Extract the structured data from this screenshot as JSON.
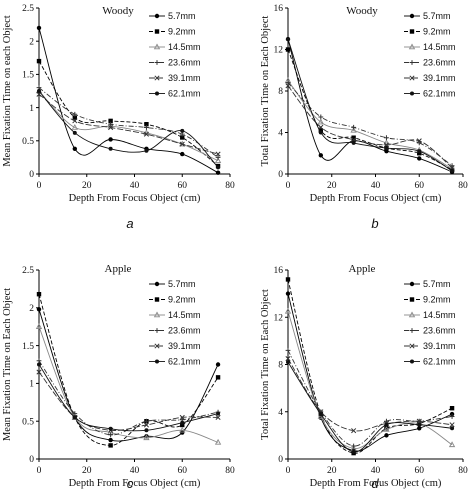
{
  "chart_data": [
    {
      "type": "line",
      "panel_label": "a",
      "title": "Woody",
      "xlabel": "Depth From Focus Object (cm)",
      "ylabel": "Mean Fixation Time on each Object",
      "xlim": [
        0,
        80
      ],
      "ylim": [
        0,
        2.5
      ],
      "xticks": [
        0,
        20,
        40,
        60,
        80
      ],
      "yticks": [
        0,
        0.5,
        1,
        1.5,
        2,
        2.5
      ],
      "ytick_labels": [
        "0",
        "0.5",
        "1",
        "1.5",
        "2",
        "2.5"
      ],
      "x": [
        0,
        15,
        30,
        45,
        60,
        75
      ],
      "series": [
        {
          "name": "5.7mm",
          "values": [
            2.2,
            0.38,
            0.52,
            0.38,
            0.3,
            0.02
          ]
        },
        {
          "name": "9.2mm",
          "values": [
            1.7,
            0.85,
            0.8,
            0.75,
            0.55,
            0.12
          ]
        },
        {
          "name": "14.5mm",
          "values": [
            1.25,
            0.7,
            0.72,
            0.62,
            0.45,
            0.2
          ]
        },
        {
          "name": "23.6mm",
          "values": [
            1.3,
            0.9,
            0.75,
            0.7,
            0.6,
            0.25
          ]
        },
        {
          "name": "39.1mm",
          "values": [
            1.2,
            0.8,
            0.7,
            0.6,
            0.45,
            0.3
          ]
        },
        {
          "name": "62.1mm",
          "values": [
            1.25,
            0.62,
            0.38,
            0.35,
            0.65,
            0.1
          ]
        }
      ]
    },
    {
      "type": "line",
      "panel_label": "b",
      "title": "Woody",
      "xlabel": "Depth From Focus Object (cm)",
      "ylabel": "Total Fixation Time on Each Object",
      "xlim": [
        0,
        80
      ],
      "ylim": [
        0,
        16
      ],
      "xticks": [
        0,
        20,
        40,
        60,
        80
      ],
      "yticks": [
        0,
        4,
        8,
        12,
        16
      ],
      "ytick_labels": [
        "0",
        "4",
        "8",
        "12",
        "16"
      ],
      "x": [
        0,
        15,
        30,
        45,
        60,
        75
      ],
      "series": [
        {
          "name": "5.7mm",
          "values": [
            13,
            1.8,
            3.2,
            2.2,
            1.5,
            0.2
          ]
        },
        {
          "name": "9.2mm",
          "values": [
            12,
            4.2,
            3.5,
            2.5,
            2.0,
            0.4
          ]
        },
        {
          "name": "14.5mm",
          "values": [
            9.0,
            5.0,
            4.2,
            3.0,
            2.3,
            0.5
          ]
        },
        {
          "name": "23.6mm",
          "values": [
            8.8,
            5.5,
            4.5,
            3.5,
            3.0,
            0.8
          ]
        },
        {
          "name": "39.1mm",
          "values": [
            8.5,
            4.5,
            3.3,
            2.8,
            3.2,
            0.6
          ]
        },
        {
          "name": "62.1mm",
          "values": [
            13,
            4.0,
            3.0,
            2.5,
            2.2,
            0.3
          ]
        }
      ]
    },
    {
      "type": "line",
      "panel_label": "c",
      "title": "Apple",
      "xlabel": "Depth From Focus Object (cm)",
      "ylabel": "Mean Fixation Time on Each Object",
      "xlim": [
        0,
        80
      ],
      "ylim": [
        0,
        2.5
      ],
      "xticks": [
        0,
        20,
        40,
        60,
        80
      ],
      "yticks": [
        0,
        0.5,
        1,
        1.5,
        2,
        2.5
      ],
      "ytick_labels": [
        "0",
        "0.5",
        "1",
        "1.5",
        "2",
        "2.5"
      ],
      "x": [
        0,
        15,
        30,
        45,
        60,
        75
      ],
      "series": [
        {
          "name": "5.7mm",
          "values": [
            1.98,
            0.55,
            0.25,
            0.3,
            0.35,
            1.25
          ]
        },
        {
          "name": "9.2mm",
          "values": [
            2.18,
            0.55,
            0.18,
            0.5,
            0.45,
            1.08
          ]
        },
        {
          "name": "14.5mm",
          "values": [
            1.75,
            0.55,
            0.35,
            0.28,
            0.38,
            0.22
          ]
        },
        {
          "name": "23.6mm",
          "values": [
            1.3,
            0.6,
            0.32,
            0.5,
            0.52,
            0.62
          ]
        },
        {
          "name": "39.1mm",
          "values": [
            1.15,
            0.55,
            0.38,
            0.45,
            0.55,
            0.55
          ]
        },
        {
          "name": "62.1mm",
          "values": [
            1.25,
            0.55,
            0.4,
            0.38,
            0.48,
            0.6
          ]
        }
      ]
    },
    {
      "type": "line",
      "panel_label": "d",
      "title": "Apple",
      "xlabel": "Depth From Focus Object (cm)",
      "ylabel": "Total Fixation Time on Each Object",
      "xlim": [
        0,
        80
      ],
      "ylim": [
        0,
        16
      ],
      "xticks": [
        0,
        20,
        40,
        60,
        80
      ],
      "yticks": [
        0,
        4,
        8,
        12,
        16
      ],
      "ytick_labels": [
        "0",
        "4",
        "8",
        "12",
        "16"
      ],
      "x": [
        0,
        15,
        30,
        45,
        60,
        75
      ],
      "series": [
        {
          "name": "5.7mm",
          "values": [
            14,
            3.5,
            0.7,
            2.0,
            2.6,
            3.8
          ]
        },
        {
          "name": "9.2mm",
          "values": [
            15.2,
            3.8,
            0.5,
            2.6,
            3.0,
            4.3
          ]
        },
        {
          "name": "14.5mm",
          "values": [
            12.5,
            3.6,
            0.9,
            2.5,
            3.0,
            1.2
          ]
        },
        {
          "name": "23.6mm",
          "values": [
            9.2,
            4.0,
            1.1,
            3.2,
            3.2,
            3.6
          ]
        },
        {
          "name": "39.1mm",
          "values": [
            8.5,
            4.0,
            2.4,
            3.0,
            3.2,
            2.9
          ]
        },
        {
          "name": "62.1mm",
          "values": [
            8.2,
            3.8,
            0.6,
            2.9,
            2.9,
            2.6
          ]
        }
      ]
    }
  ],
  "series_styles": [
    {
      "dash": "",
      "marker": "circle",
      "color": "#000000"
    },
    {
      "dash": "4 2",
      "marker": "square",
      "color": "#000000"
    },
    {
      "dash": "",
      "marker": "triangle",
      "color": "#888888"
    },
    {
      "dash": "5 2 1 2",
      "marker": "cross",
      "color": "#333333"
    },
    {
      "dash": "6 2",
      "marker": "x",
      "color": "#333333"
    },
    {
      "dash": "",
      "marker": "dot",
      "color": "#111111"
    }
  ]
}
